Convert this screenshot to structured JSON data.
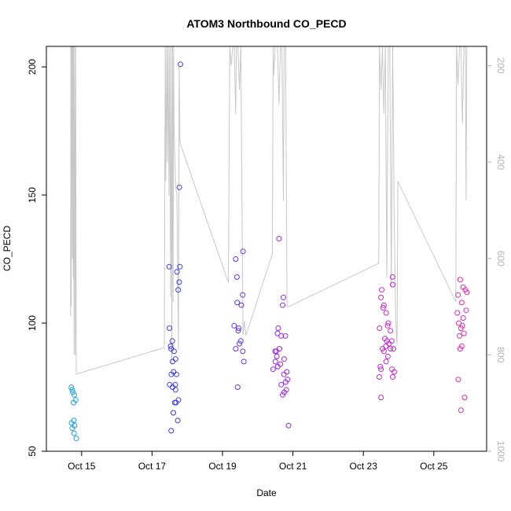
{
  "chart_data": {
    "type": "scatter",
    "title": "ATOM3 Northbound CO_PECD",
    "xlabel": "Date",
    "ylabel": "CO_PECD",
    "xlim": [
      "2023-10-14T00:00",
      "2023-10-26T12:00"
    ],
    "ylim": [
      50,
      208
    ],
    "x_ticks": [
      {
        "label": "Oct 15",
        "x": "2023-10-15"
      },
      {
        "label": "Oct 17",
        "x": "2023-10-17"
      },
      {
        "label": "Oct 19",
        "x": "2023-10-19"
      },
      {
        "label": "Oct 21",
        "x": "2023-10-21"
      },
      {
        "label": "Oct 23",
        "x": "2023-10-23"
      },
      {
        "label": "Oct 25",
        "x": "2023-10-25"
      }
    ],
    "y_ticks": [
      50,
      100,
      150,
      200
    ],
    "y2_ticks": [
      200,
      400,
      600,
      800,
      1000
    ],
    "y2_lim": [
      1000,
      160
    ],
    "y2_reversed": true,
    "colors": {
      "profile_line": "#c8c8c8",
      "axis": "#000000",
      "right_axis": "#b4b4b4"
    },
    "series": [
      {
        "color": "#1ea0f0",
        "points": [
          [
            "2023-10-14T17:00",
            75
          ],
          [
            "2023-10-14T17:30",
            74
          ],
          [
            "2023-10-14T18:00",
            73
          ],
          [
            "2023-10-14T19:00",
            72
          ],
          [
            "2023-10-14T18:30",
            69
          ],
          [
            "2023-10-14T20:00",
            70
          ],
          [
            "2023-10-14T17:10",
            61
          ],
          [
            "2023-10-14T18:40",
            62
          ],
          [
            "2023-10-14T17:40",
            59
          ],
          [
            "2023-10-14T19:10",
            60
          ],
          [
            "2023-10-14T18:50",
            57
          ],
          [
            "2023-10-14T20:20",
            55
          ]
        ]
      },
      {
        "color": "#3c3cf0",
        "points": [
          [
            "2023-10-17T11:40",
            122
          ],
          [
            "2023-10-17T11:50",
            98
          ],
          [
            "2023-10-17T12:40",
            91
          ],
          [
            "2023-10-17T13:00",
            90
          ],
          [
            "2023-10-17T13:50",
            93
          ],
          [
            "2023-10-17T15:00",
            89
          ],
          [
            "2023-10-17T16:00",
            86
          ],
          [
            "2023-10-17T14:00",
            85
          ],
          [
            "2023-10-17T14:40",
            81
          ],
          [
            "2023-10-17T13:10",
            80
          ],
          [
            "2023-10-17T16:40",
            80
          ],
          [
            "2023-10-17T12:00",
            76
          ],
          [
            "2023-10-17T14:00",
            75
          ],
          [
            "2023-10-17T15:50",
            76
          ],
          [
            "2023-10-17T16:00",
            74
          ],
          [
            "2023-10-17T15:30",
            69
          ],
          [
            "2023-10-17T16:20",
            69
          ],
          [
            "2023-10-17T18:00",
            70
          ],
          [
            "2023-10-17T14:30",
            65
          ],
          [
            "2023-10-17T17:30",
            62
          ],
          [
            "2023-10-17T13:00",
            58
          ],
          [
            "2023-10-17T19:20",
            201
          ],
          [
            "2023-10-17T18:40",
            153
          ],
          [
            "2023-10-17T19:00",
            122
          ],
          [
            "2023-10-17T18:30",
            116
          ],
          [
            "2023-10-17T17:50",
            113
          ],
          [
            "2023-10-17T17:00",
            120
          ]
        ]
      },
      {
        "color": "#6432f0",
        "points": [
          [
            "2023-10-19T09:00",
            125
          ],
          [
            "2023-10-19T14:00",
            128
          ],
          [
            "2023-10-19T09:50",
            118
          ],
          [
            "2023-10-19T13:50",
            111
          ],
          [
            "2023-10-19T10:00",
            108
          ],
          [
            "2023-10-19T12:50",
            107
          ],
          [
            "2023-10-19T08:00",
            99
          ],
          [
            "2023-10-19T11:00",
            98
          ],
          [
            "2023-10-19T10:40",
            97
          ],
          [
            "2023-10-19T12:30",
            93
          ],
          [
            "2023-10-19T11:30",
            92
          ],
          [
            "2023-10-19T09:00",
            90
          ],
          [
            "2023-10-19T13:50",
            89
          ],
          [
            "2023-10-19T14:30",
            85
          ],
          [
            "2023-10-19T10:20",
            75
          ]
        ]
      },
      {
        "color": "#9b28e6",
        "points": [
          [
            "2023-10-20T14:30",
            133
          ],
          [
            "2023-10-20T17:30",
            110
          ],
          [
            "2023-10-20T17:00",
            107
          ],
          [
            "2023-10-20T14:00",
            98
          ],
          [
            "2023-10-20T13:30",
            96
          ],
          [
            "2023-10-20T16:00",
            95
          ],
          [
            "2023-10-20T18:50",
            95
          ],
          [
            "2023-10-20T14:50",
            90
          ],
          [
            "2023-10-20T11:50",
            89
          ],
          [
            "2023-10-20T12:40",
            89
          ],
          [
            "2023-10-20T13:00",
            87
          ],
          [
            "2023-10-20T18:00",
            86
          ],
          [
            "2023-10-20T12:00",
            85
          ],
          [
            "2023-10-20T15:30",
            84
          ],
          [
            "2023-10-20T10:30",
            82
          ],
          [
            "2023-10-20T13:40",
            83
          ],
          [
            "2023-10-20T19:50",
            81
          ],
          [
            "2023-10-20T17:50",
            80
          ],
          [
            "2023-10-20T20:20",
            78
          ],
          [
            "2023-10-20T19:00",
            77
          ],
          [
            "2023-10-20T16:00",
            76
          ],
          [
            "2023-10-20T19:30",
            74
          ],
          [
            "2023-10-20T18:00",
            73
          ],
          [
            "2023-10-20T17:00",
            72
          ],
          [
            "2023-10-20T21:00",
            60
          ]
        ]
      },
      {
        "color": "#c828d2",
        "points": [
          [
            "2023-10-23T12:30",
            113
          ],
          [
            "2023-10-23T12:00",
            110
          ],
          [
            "2023-10-23T19:50",
            118
          ],
          [
            "2023-10-23T20:00",
            115
          ],
          [
            "2023-10-23T14:00",
            107
          ],
          [
            "2023-10-23T13:30",
            106
          ],
          [
            "2023-10-23T15:30",
            104
          ],
          [
            "2023-10-23T17:00",
            100
          ],
          [
            "2023-10-23T11:00",
            98
          ],
          [
            "2023-10-23T16:30",
            99
          ],
          [
            "2023-10-23T18:30",
            97
          ],
          [
            "2023-10-23T14:40",
            94
          ],
          [
            "2023-10-23T16:00",
            93
          ],
          [
            "2023-10-23T17:30",
            92
          ],
          [
            "2023-10-23T19:20",
            93
          ],
          [
            "2023-10-23T15:20",
            91
          ],
          [
            "2023-10-23T13:00",
            90
          ],
          [
            "2023-10-23T18:30",
            90
          ],
          [
            "2023-10-23T20:30",
            90
          ],
          [
            "2023-10-23T14:00",
            89
          ],
          [
            "2023-10-23T16:40",
            87
          ],
          [
            "2023-10-23T15:30",
            85
          ],
          [
            "2023-10-23T11:30",
            83
          ],
          [
            "2023-10-23T12:00",
            82
          ],
          [
            "2023-10-23T21:00",
            81
          ],
          [
            "2023-10-23T20:00",
            79
          ],
          [
            "2023-10-23T10:50",
            79
          ],
          [
            "2023-10-23T12:00",
            71
          ],
          [
            "2023-10-23T19:30",
            82
          ]
        ]
      },
      {
        "color": "#e628b4",
        "points": [
          [
            "2023-10-25T18:00",
            117
          ],
          [
            "2023-10-25T20:00",
            114
          ],
          [
            "2023-10-25T22:30",
            112
          ],
          [
            "2023-10-25T21:30",
            113
          ],
          [
            "2023-10-25T16:30",
            111
          ],
          [
            "2023-10-25T19:00",
            108
          ],
          [
            "2023-10-25T16:00",
            104
          ],
          [
            "2023-10-25T22:00",
            105
          ],
          [
            "2023-10-25T20:00",
            102
          ],
          [
            "2023-10-25T18:30",
            98
          ],
          [
            "2023-10-25T19:30",
            99
          ],
          [
            "2023-10-25T17:00",
            100
          ],
          [
            "2023-10-25T20:30",
            96
          ],
          [
            "2023-10-25T17:30",
            95
          ],
          [
            "2023-10-25T19:00",
            91
          ],
          [
            "2023-10-25T18:00",
            90
          ],
          [
            "2023-10-25T21:00",
            71
          ],
          [
            "2023-10-25T16:40",
            78
          ],
          [
            "2023-10-25T18:30",
            66
          ]
        ]
      }
    ],
    "profile_line": [
      [
        "2023-10-14T16:30",
        720
      ],
      [
        "2023-10-14T16:40",
        160
      ],
      [
        "2023-10-14T16:50",
        320
      ],
      [
        "2023-10-14T17:00",
        700
      ],
      [
        "2023-10-14T17:10",
        160
      ],
      [
        "2023-10-14T17:30",
        160
      ],
      [
        "2023-10-14T17:40",
        600
      ],
      [
        "2023-10-14T18:00",
        160
      ],
      [
        "2023-10-14T18:20",
        640
      ],
      [
        "2023-10-14T18:30",
        160
      ],
      [
        "2023-10-14T18:50",
        800
      ],
      [
        "2023-10-14T19:10",
        160
      ],
      [
        "2023-10-14T19:40",
        800
      ],
      [
        "2023-10-14T20:00",
        160
      ],
      [
        "2023-10-14T20:20",
        840
      ],
      [
        "2023-10-17T08:20",
        785
      ],
      [
        "2023-10-17T08:40",
        490
      ],
      [
        "2023-10-17T09:00",
        160
      ],
      [
        "2023-10-17T09:20",
        440
      ],
      [
        "2023-10-17T10:00",
        160
      ],
      [
        "2023-10-17T10:20",
        400
      ],
      [
        "2023-10-17T11:00",
        160
      ],
      [
        "2023-10-17T11:30",
        470
      ],
      [
        "2023-10-17T12:00",
        160
      ],
      [
        "2023-10-17T12:40",
        680
      ],
      [
        "2023-10-17T13:00",
        160
      ],
      [
        "2023-10-17T13:30",
        820
      ],
      [
        "2023-10-17T14:00",
        160
      ],
      [
        "2023-10-17T14:20",
        690
      ],
      [
        "2023-10-17T14:40",
        160
      ],
      [
        "2023-10-17T15:00",
        330
      ],
      [
        "2023-10-17T16:00",
        450
      ],
      [
        "2023-10-17T17:00",
        470
      ],
      [
        "2023-10-17T18:00",
        790
      ],
      [
        "2023-10-17T18:30",
        200
      ],
      [
        "2023-10-17T19:00",
        360
      ],
      [
        "2023-10-19T04:00",
        650
      ],
      [
        "2023-10-19T05:00",
        160
      ],
      [
        "2023-10-19T06:00",
        200
      ],
      [
        "2023-10-19T07:00",
        160
      ],
      [
        "2023-10-19T08:00",
        160
      ],
      [
        "2023-10-19T09:00",
        300
      ],
      [
        "2023-10-19T09:30",
        160
      ],
      [
        "2023-10-19T10:30",
        160
      ],
      [
        "2023-10-19T11:30",
        250
      ],
      [
        "2023-10-19T12:30",
        160
      ],
      [
        "2023-10-19T14:00",
        760
      ],
      [
        "2023-10-19T15:00",
        730
      ],
      [
        "2023-10-19T16:00",
        760
      ],
      [
        "2023-10-20T10:00",
        590
      ],
      [
        "2023-10-20T10:30",
        160
      ],
      [
        "2023-10-20T11:00",
        220
      ],
      [
        "2023-10-20T12:00",
        160
      ],
      [
        "2023-10-20T13:30",
        160
      ],
      [
        "2023-10-20T14:30",
        280
      ],
      [
        "2023-10-20T15:30",
        160
      ],
      [
        "2023-10-20T16:30",
        160
      ],
      [
        "2023-10-20T17:30",
        480
      ],
      [
        "2023-10-20T18:00",
        160
      ],
      [
        "2023-10-20T19:00",
        160
      ],
      [
        "2023-10-20T20:00",
        700
      ],
      [
        "2023-10-20T21:00",
        700
      ],
      [
        "2023-10-23T10:30",
        610
      ],
      [
        "2023-10-23T11:00",
        160
      ],
      [
        "2023-10-23T12:00",
        250
      ],
      [
        "2023-10-23T13:00",
        160
      ],
      [
        "2023-10-23T14:00",
        300
      ],
      [
        "2023-10-23T15:00",
        160
      ],
      [
        "2023-10-23T16:00",
        640
      ],
      [
        "2023-10-23T17:00",
        160
      ],
      [
        "2023-10-23T18:00",
        160
      ],
      [
        "2023-10-23T19:00",
        660
      ],
      [
        "2023-10-23T20:00",
        160
      ],
      [
        "2023-10-23T21:00",
        510
      ],
      [
        "2023-10-23T22:00",
        720
      ],
      [
        "2023-10-23T23:00",
        780
      ],
      [
        "2023-10-23T23:30",
        440
      ],
      [
        "2023-10-25T15:00",
        690
      ],
      [
        "2023-10-25T15:30",
        160
      ],
      [
        "2023-10-25T16:30",
        240
      ],
      [
        "2023-10-25T17:30",
        160
      ],
      [
        "2023-10-25T18:30",
        160
      ],
      [
        "2023-10-25T19:30",
        320
      ],
      [
        "2023-10-25T20:30",
        160
      ],
      [
        "2023-10-25T21:30",
        160
      ],
      [
        "2023-10-25T22:00",
        480
      ],
      [
        "2023-10-25T22:30",
        160
      ]
    ]
  }
}
